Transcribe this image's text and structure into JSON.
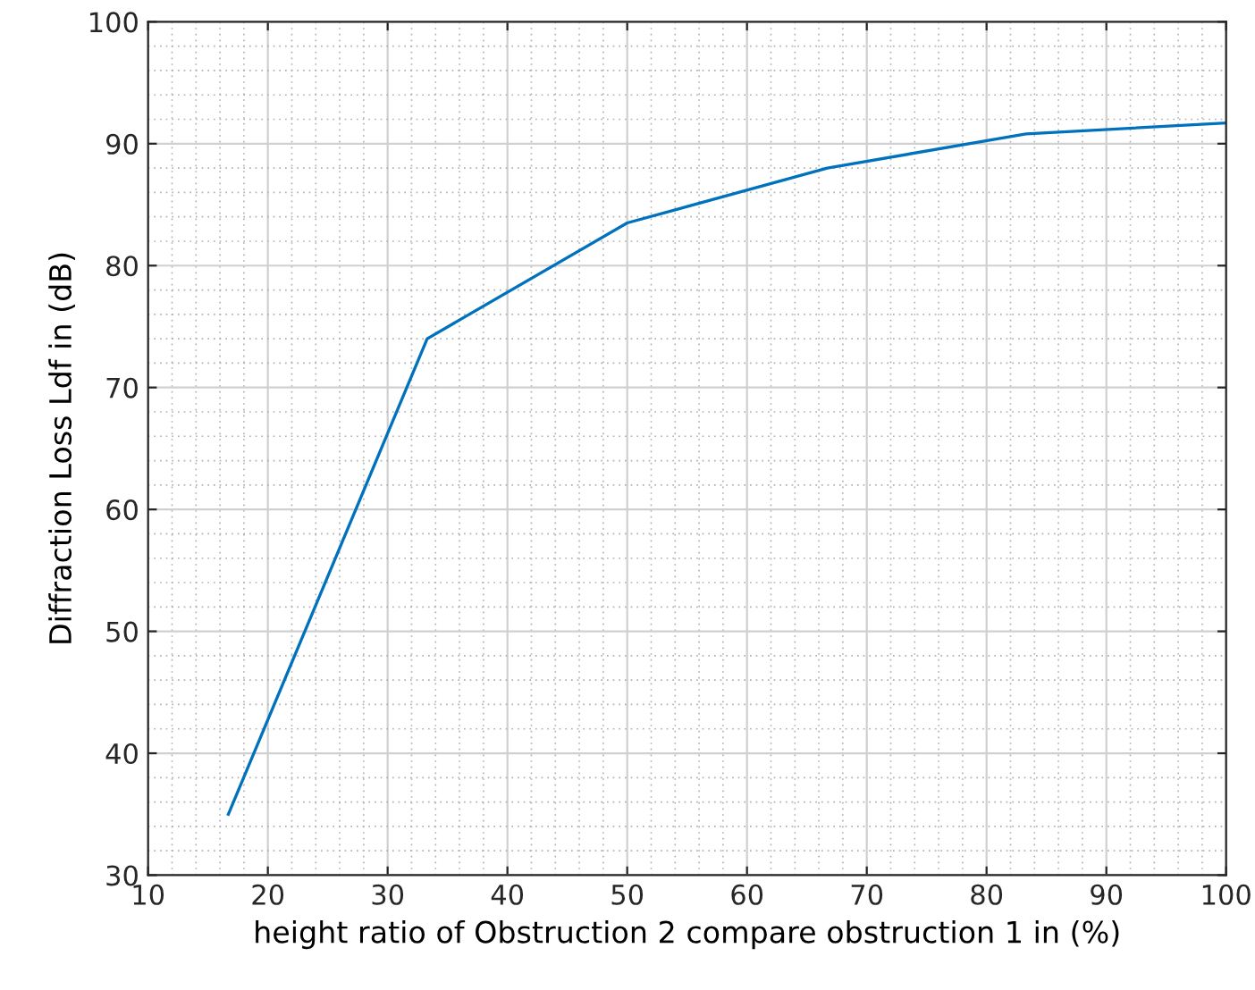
{
  "chart_data": {
    "type": "line",
    "xlabel": "height ratio of Obstruction 2 compare obstruction 1 in (%)",
    "ylabel": "Diffraction Loss Ldf in (dB)",
    "x": [
      16.7,
      33.3,
      50,
      66.7,
      83.3,
      100
    ],
    "series": [
      {
        "color": "#0072bd",
        "values": [
          35,
          74,
          83.5,
          88,
          90.8,
          91.7
        ]
      }
    ],
    "xlim": [
      10,
      100
    ],
    "xticks": [
      10,
      20,
      30,
      40,
      50,
      60,
      70,
      80,
      90,
      100
    ],
    "ylim": [
      30,
      100
    ],
    "yticks": [
      30,
      40,
      50,
      60,
      70,
      80,
      90,
      100
    ],
    "grid": true,
    "line_style": "solid",
    "marker": "none"
  }
}
